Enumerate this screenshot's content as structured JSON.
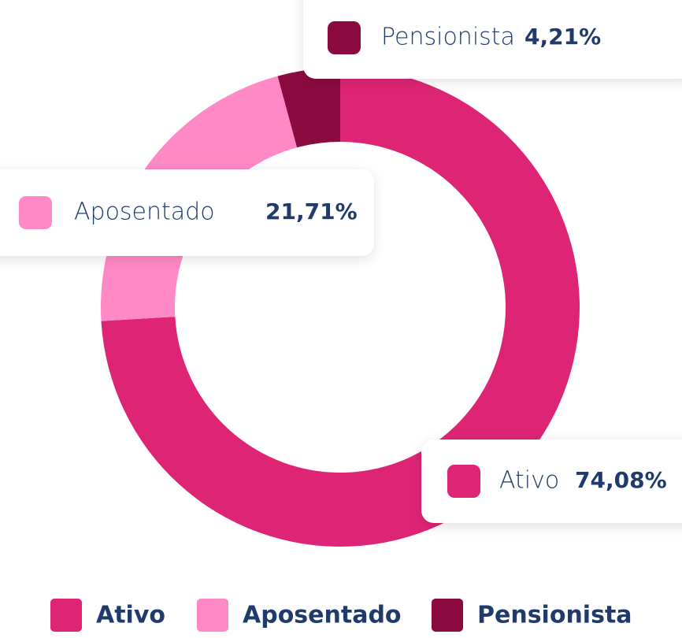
{
  "chart_data": {
    "type": "donut",
    "categories": [
      "Ativo",
      "Aposentado",
      "Pensionista"
    ],
    "values": [
      74.08,
      21.71,
      4.21
    ],
    "value_labels": [
      "74,08%",
      "21,71%",
      "4,21%"
    ],
    "colors": [
      "#dd2475",
      "#ff88c6",
      "#8b0a40"
    ],
    "legend": "bottom"
  }
}
